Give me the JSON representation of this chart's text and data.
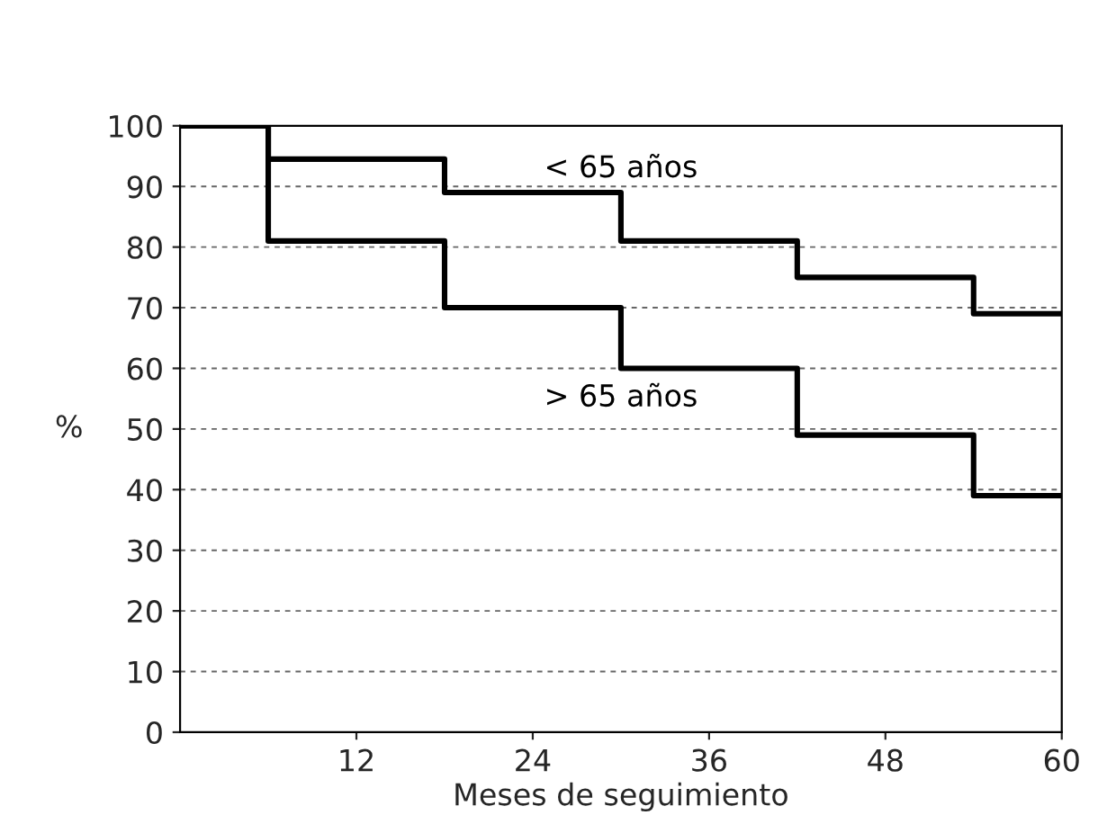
{
  "chart_data": {
    "type": "step",
    "xlabel": "Meses de seguimiento",
    "ylabel": "%",
    "x": [
      0,
      6,
      18,
      30,
      42,
      54,
      60
    ],
    "series": [
      {
        "name": "< 65 años",
        "color": "#000000",
        "values": [
          100,
          94.5,
          89,
          81,
          75,
          69,
          69
        ]
      },
      {
        "name": "> 65 años",
        "color": "#000000",
        "values": [
          100,
          81,
          70,
          60,
          49,
          39,
          39
        ]
      }
    ],
    "xlim": [
      0,
      60
    ],
    "xticks": [
      12,
      24,
      36,
      48,
      60
    ],
    "ylim": [
      0,
      100
    ],
    "yticks": [
      0,
      10,
      20,
      30,
      40,
      50,
      60,
      70,
      80,
      90,
      100
    ],
    "grid": "y",
    "line_style": "solid"
  }
}
